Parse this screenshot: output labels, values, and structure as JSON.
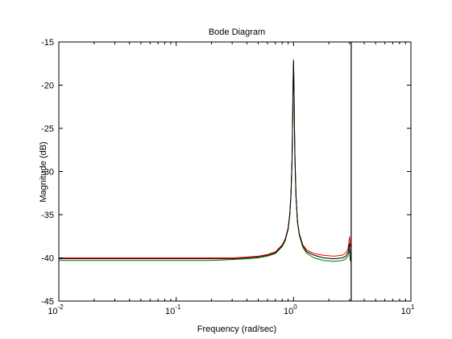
{
  "chart_data": {
    "type": "line",
    "title": "Bode Diagram",
    "xlabel": "Frequency  (rad/sec)",
    "ylabel": "Magnitude (dB)",
    "xscale": "log",
    "xlim": [
      0.01,
      10
    ],
    "ylim": [
      -45,
      -15
    ],
    "x_tick_labels": [
      {
        "base": "10",
        "exp": "-2"
      },
      {
        "base": "10",
        "exp": "-1"
      },
      {
        "base": "10",
        "exp": "0"
      },
      {
        "base": "10",
        "exp": "1"
      }
    ],
    "y_ticks": [
      "-15",
      "-20",
      "-25",
      "-30",
      "-35",
      "-40",
      "-45"
    ],
    "grid": false,
    "vertical_line_x": 3.1,
    "series": [
      {
        "color": "#ff0000",
        "x": [
          0.01,
          0.05,
          0.1,
          0.2,
          0.3,
          0.4,
          0.5,
          0.6,
          0.7,
          0.8,
          0.85,
          0.9,
          0.93,
          0.95,
          0.97,
          0.98,
          0.99,
          1.0,
          1.01,
          1.02,
          1.03,
          1.05,
          1.08,
          1.12,
          1.2,
          1.3,
          1.5,
          1.8,
          2.2,
          2.6,
          2.8,
          2.9,
          2.95,
          3.0,
          3.05,
          3.1
        ],
        "y": [
          -40.0,
          -40.0,
          -40.0,
          -40.0,
          -40.0,
          -39.9,
          -39.8,
          -39.6,
          -39.3,
          -38.5,
          -37.8,
          -36.5,
          -34.8,
          -32.8,
          -29.0,
          -25.5,
          -20.5,
          -17.5,
          -21.0,
          -25.8,
          -29.0,
          -33.0,
          -35.8,
          -37.2,
          -38.5,
          -39.1,
          -39.5,
          -39.7,
          -39.8,
          -39.7,
          -39.4,
          -39.0,
          -38.4,
          -37.5,
          -38.6,
          -38.6
        ]
      },
      {
        "color": "#008000",
        "x": [
          0.01,
          0.05,
          0.1,
          0.2,
          0.3,
          0.4,
          0.5,
          0.6,
          0.7,
          0.8,
          0.85,
          0.9,
          0.93,
          0.95,
          0.97,
          0.98,
          0.99,
          1.0,
          1.01,
          1.02,
          1.03,
          1.05,
          1.08,
          1.12,
          1.2,
          1.3,
          1.5,
          1.8,
          2.2,
          2.6,
          2.8,
          2.9,
          2.95,
          3.0,
          3.05,
          3.1
        ],
        "y": [
          -40.3,
          -40.3,
          -40.3,
          -40.3,
          -40.2,
          -40.1,
          -40.0,
          -39.8,
          -39.5,
          -38.7,
          -38.0,
          -36.7,
          -35.0,
          -32.8,
          -28.8,
          -25.0,
          -20.0,
          -17.0,
          -20.7,
          -25.5,
          -28.8,
          -32.9,
          -35.9,
          -37.4,
          -38.8,
          -39.5,
          -40.0,
          -40.3,
          -40.4,
          -40.3,
          -40.1,
          -39.8,
          -39.5,
          -39.0,
          -40.4,
          -40.4
        ]
      },
      {
        "color": "#000000",
        "x": [
          0.01,
          0.05,
          0.1,
          0.2,
          0.3,
          0.4,
          0.5,
          0.6,
          0.7,
          0.8,
          0.85,
          0.9,
          0.93,
          0.95,
          0.97,
          0.98,
          0.99,
          1.0,
          1.01,
          1.02,
          1.03,
          1.05,
          1.08,
          1.12,
          1.2,
          1.3,
          1.5,
          1.8,
          2.2,
          2.6,
          2.8,
          2.9,
          2.95,
          3.0,
          3.05,
          3.1
        ],
        "y": [
          -40.1,
          -40.1,
          -40.1,
          -40.1,
          -40.1,
          -40.0,
          -39.9,
          -39.7,
          -39.4,
          -38.6,
          -37.9,
          -36.6,
          -34.9,
          -32.8,
          -28.9,
          -25.2,
          -20.2,
          -17.2,
          -20.8,
          -25.6,
          -28.9,
          -32.9,
          -35.8,
          -37.3,
          -38.6,
          -39.3,
          -39.7,
          -40.0,
          -40.1,
          -40.0,
          -39.8,
          -39.4,
          -39.0,
          -38.3,
          -40.2,
          -40.2
        ]
      }
    ]
  }
}
